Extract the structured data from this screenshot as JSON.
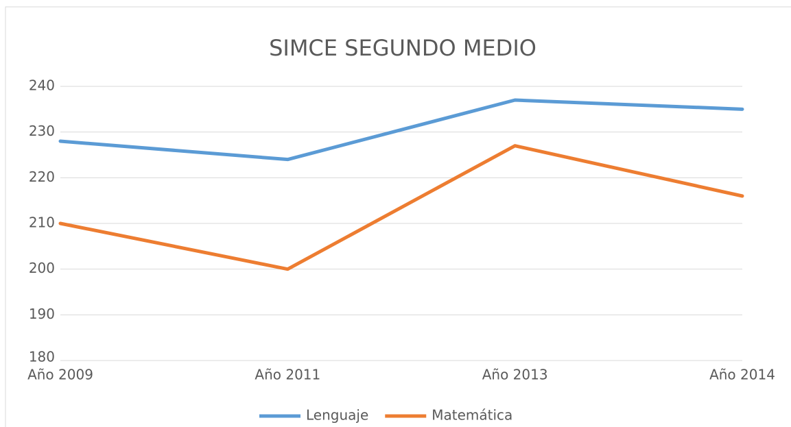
{
  "chart_data": {
    "type": "line",
    "title": "SIMCE SEGUNDO MEDIO",
    "categories": [
      "Año 2009",
      "Año 2011",
      "Año 2013",
      "Año 2014"
    ],
    "series": [
      {
        "name": "Lenguaje",
        "color": "#5b9bd5",
        "values": [
          228,
          224,
          237,
          235
        ]
      },
      {
        "name": "Matemática",
        "color": "#ed7d31",
        "values": [
          210,
          200,
          227,
          216
        ]
      }
    ],
    "ylim": [
      180,
      240
    ],
    "yticks": [
      180,
      190,
      200,
      210,
      220,
      230,
      240
    ],
    "grid": true,
    "legend": "bottom"
  }
}
